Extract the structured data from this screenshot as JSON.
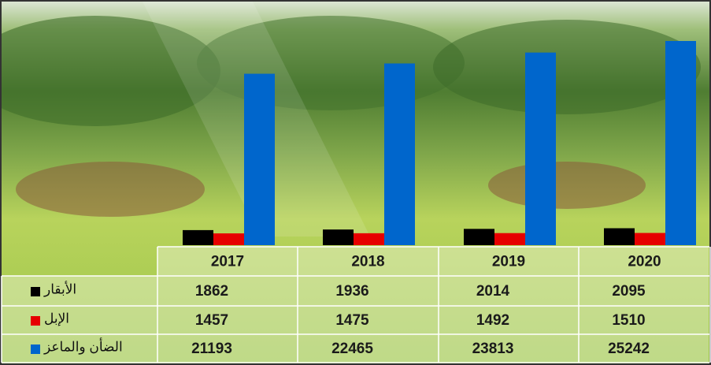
{
  "chart_data": {
    "type": "bar",
    "categories": [
      "2017",
      "2018",
      "2019",
      "2020"
    ],
    "series": [
      {
        "name": "الأبقار",
        "color": "#000000",
        "values": [
          1862,
          1936,
          2014,
          2095
        ]
      },
      {
        "name": "الإبل",
        "color": "#e60000",
        "values": [
          1457,
          1475,
          1492,
          1510
        ]
      },
      {
        "name": "الضأن والماعز",
        "color": "#0066cc",
        "values": [
          21193,
          22465,
          23813,
          25242
        ]
      }
    ]
  }
}
